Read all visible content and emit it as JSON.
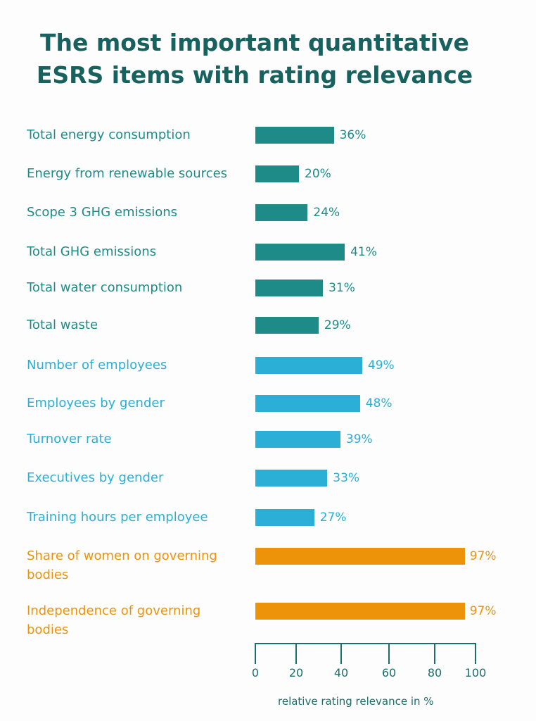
{
  "chart_data": {
    "type": "bar",
    "orientation": "horizontal",
    "title": "The most important quantitative ESRS items with rating relevance",
    "title_lines": [
      "The most important quantitative",
      "ESRS items with rating relevance"
    ],
    "xlabel": "relative rating relevance in %",
    "xlim": [
      0,
      100
    ],
    "xticks": [
      "0",
      "20",
      "40",
      "60",
      "80",
      "100"
    ],
    "grid": false,
    "colors": {
      "environment": "#1e8b89",
      "social": "#2bafd6",
      "governance": "#ec9309",
      "title": "#17625f",
      "axis": "#1a6f6c"
    },
    "categories": [
      {
        "label": "Total energy consumption",
        "value": 36,
        "group": "environment"
      },
      {
        "label": "Energy from renewable sources",
        "value": 20,
        "group": "environment"
      },
      {
        "label": "Scope 3 GHG emissions",
        "value": 24,
        "group": "environment"
      },
      {
        "label": "Total GHG emissions",
        "value": 41,
        "group": "environment"
      },
      {
        "label": "Total water consumption",
        "value": 31,
        "group": "environment"
      },
      {
        "label": "Total waste",
        "value": 29,
        "group": "environment"
      },
      {
        "label": "Number of employees",
        "value": 49,
        "group": "social"
      },
      {
        "label": "Employees by gender",
        "value": 48,
        "group": "social"
      },
      {
        "label": "Turnover rate",
        "value": 39,
        "group": "social"
      },
      {
        "label": "Executives by gender",
        "value": 33,
        "group": "social"
      },
      {
        "label": "Training hours per employee",
        "value": 27,
        "group": "social"
      },
      {
        "label": "Share of women on governing bodies",
        "value": 97,
        "group": "governance"
      },
      {
        "label": "Independence of governing bodies",
        "value": 97,
        "group": "governance"
      }
    ],
    "value_labels": [
      "36%",
      "20%",
      "24%",
      "41%",
      "31%",
      "29%",
      "49%",
      "48%",
      "39%",
      "33%",
      "27%",
      "97%",
      "97%"
    ]
  }
}
